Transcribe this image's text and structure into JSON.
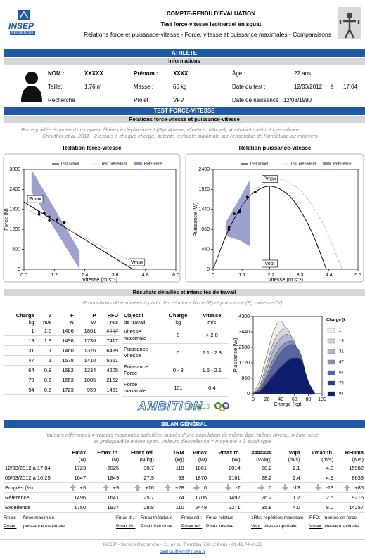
{
  "header": {
    "logo": "INSEP",
    "logo_sub": "RECHERCHE",
    "title": "COMPTE-RENDU D'ÉVALUATION",
    "subtitle": "Test force-vitesse isoinertiel en squat",
    "description": "Relations force et puissance-vitesse - Force, vitesse et puissance maximales - Comparaisons"
  },
  "athlete": {
    "section": "ATHLÈTE",
    "subsection": "Informations",
    "rows": [
      [
        "NOM :",
        "XXXXX",
        "Prénom :",
        "XXXX",
        "Âge :",
        "22 ans"
      ],
      [
        "Taille:",
        "1.76 m",
        "Masse :",
        "66 kg",
        "Date du test :",
        "12/03/2012",
        "à",
        "17:04"
      ],
      [
        "Recherche",
        "Projet",
        "VFV",
        "Date de naissance : 12/08/1990"
      ]
    ]
  },
  "test": {
    "section": "TEST FORCE-VITESSE",
    "subsection": "Relations force-vitesse et puissance-vitesse",
    "note": [
      "Barre guidée équipée d'un capteur filaire de déplacement (GymAware, Kinetics, Mitchell, Australie) - Métrologie validée",
      "Crewther et al. 2011 - 2 essais à chaque charge, détente verticale maximale sur l'ensemble de l'amplitude de mouvem"
    ]
  },
  "chart_data": [
    {
      "type": "line",
      "title": "Relation force-vitesse",
      "x_label": "Vitesse (m.s⁻¹)",
      "y_label": "Force (N)",
      "xlim": [
        0,
        6
      ],
      "ylim": [
        0,
        3000
      ],
      "xticks": [
        {
          "value": 0,
          "label": "0.0"
        },
        1.2,
        2.4,
        3.6,
        4.8,
        {
          "value": 6,
          "label": "6.0"
        }
      ],
      "yticks": [
        0,
        600,
        1200,
        1800,
        2400,
        3000
      ],
      "series": [
        {
          "name": "Test actuel",
          "color": "#000000",
          "x": [
            0,
            4.3
          ],
          "values": [
            2025,
            0
          ]
        },
        {
          "name": "Test précédent",
          "color": "#b0b0b0",
          "dash": true,
          "x": [
            0,
            4.9
          ],
          "values": [
            1849,
            0
          ]
        }
      ],
      "band": {
        "name": "Référence",
        "color": "#8c90c8",
        "x": [
          0.3,
          2.2
        ],
        "upper": [
          3000,
          540
        ],
        "lower": [
          2330,
          0
        ]
      },
      "points": {
        "color": "#000000",
        "x": [
          1.6,
          1.3,
          1,
          1,
          0.8,
          0.6,
          0.6
        ],
        "values": [
          1406,
          1496,
          1460,
          1578,
          1682,
          1653,
          1723
        ]
      },
      "annotations": [
        "Fmax",
        "Vmax"
      ]
    },
    {
      "type": "line",
      "title": "Relation puissance-vitesse",
      "x_label": "Vitesse (m.s⁻¹)",
      "y_label": "Puissance (W)",
      "xlim": [
        0,
        5.5
      ],
      "ylim": [
        0,
        2400
      ],
      "xticks": [
        0,
        1.1,
        2.2,
        3.3,
        4.4,
        5.5
      ],
      "yticks": [
        0,
        480,
        960,
        1440,
        1920,
        2400
      ],
      "series": [
        {
          "name": "Test actuel",
          "color": "#000000",
          "x": [
            0,
            0.5,
            1,
            1.5,
            2.15,
            2.8,
            3.3,
            3.8,
            4.3
          ],
          "values": [
            0,
            822,
            1428,
            1817,
            2000,
            1817,
            1428,
            822,
            0
          ]
        },
        {
          "name": "Test précédent",
          "color": "#b0b0b0",
          "dash": true,
          "x": [
            0,
            0.6,
            1.2,
            1.8,
            2.45,
            3.1,
            3.7,
            4.3,
            4.9
          ],
          "values": [
            0,
            928,
            1598,
            2008,
            2160,
            2008,
            1598,
            928,
            0
          ]
        }
      ],
      "band": {
        "name": "Référence",
        "color": "#8c90c8",
        "x": [
          0.5,
          1.0,
          1.4
        ],
        "upper": [
          1150,
          1700,
          2150
        ],
        "lower": [
          800,
          700,
          550
        ]
      },
      "points": {
        "color": "#000000",
        "x": [
          1.6,
          1.3,
          1,
          1,
          0.8,
          0.6,
          0.6
        ],
        "values": [
          1861,
          1736,
          1376,
          1410,
          1334,
          1005,
          959
        ]
      },
      "annotations": [
        "Pmax",
        "Vopt"
      ]
    },
    {
      "type": "area",
      "x_label": "Charge (kg)",
      "y_label": "Puissance (W)",
      "legend_title": "Charge (k",
      "xlim": [
        0,
        100
      ],
      "ylim": [
        0,
        4300
      ],
      "xticks": [
        0,
        20,
        40,
        60,
        80,
        100
      ],
      "yticks": [
        0,
        860,
        1720,
        2580,
        3440,
        4300
      ],
      "x": [
        0,
        10,
        20,
        30,
        40,
        50,
        60,
        70,
        80,
        90
      ],
      "series": [
        {
          "name": "1",
          "color": "#eeeeee",
          "values": [
            0,
            800,
            2200,
            3500,
            4050,
            3300,
            1800,
            600,
            0,
            0
          ]
        },
        {
          "name": "19",
          "color": "#d4d6de",
          "values": [
            0,
            500,
            1700,
            2900,
            3500,
            3600,
            2600,
            1000,
            100,
            0
          ]
        },
        {
          "name": "31",
          "color": "#b3b8cc",
          "values": [
            0,
            400,
            1400,
            2500,
            3100,
            3300,
            2900,
            1400,
            200,
            0
          ]
        },
        {
          "name": "47",
          "color": "#8690b8",
          "values": [
            0,
            300,
            1100,
            2000,
            2600,
            2900,
            2800,
            1800,
            300,
            0
          ]
        },
        {
          "name": "64",
          "color": "#5866a0",
          "values": [
            0,
            250,
            900,
            1700,
            2300,
            2650,
            2700,
            2100,
            500,
            0
          ]
        },
        {
          "name": "79",
          "color": "#2d3d86",
          "values": [
            0,
            150,
            600,
            1100,
            1500,
            1850,
            2000,
            1800,
            600,
            0
          ]
        },
        {
          "name": "94",
          "color": "#0c1e6c",
          "values": [
            0,
            150,
            550,
            1000,
            1450,
            1800,
            1950,
            1850,
            700,
            0
          ]
        }
      ]
    }
  ],
  "results": {
    "subsection": "Résultats détaillés et intensités de travail",
    "note": "Propositions déterminées à partir des relations force (F) et puissance (P) - vitesse (V)",
    "detail": {
      "header": [
        [
          "Charge",
          "V",
          "F",
          "P",
          "RFD"
        ],
        [
          "kg",
          "m/s",
          "N",
          "W",
          "N/s"
        ]
      ],
      "rows": [
        [
          "1",
          "1.6",
          "1406",
          "1861",
          "####"
        ],
        [
          "19",
          "1.3",
          "1496",
          "1736",
          "7417"
        ],
        [
          "31",
          "1",
          "1460",
          "1376",
          "6439"
        ],
        [
          "47",
          "1",
          "1578",
          "1410",
          "5651"
        ],
        [
          "64",
          "0.8",
          "1682",
          "1334",
          "4205"
        ],
        [
          "79",
          "0.6",
          "1653",
          "1005",
          "2162"
        ],
        [
          "94",
          "0.6",
          "1723",
          "959",
          "1461"
        ]
      ]
    },
    "objectives": {
      "header": [
        [
          "Objectif",
          "Charge",
          "Vitesse"
        ],
        [
          "de travail",
          "kg",
          "m/s"
        ]
      ],
      "rows": [
        [
          "Vitesse maximale",
          "0",
          "> 2.8"
        ],
        [
          "Puissance Vitesse",
          "0",
          "2.1 - 2.8"
        ],
        [
          "Puissance Force",
          "0 - 3",
          "1.5 - 2.1"
        ],
        [
          "Force maximale",
          "101",
          "0.4"
        ]
      ]
    },
    "logos": [
      "AMBITION",
      "Rio2016"
    ]
  },
  "summary": {
    "section": "BILAN GÉNÉRAL",
    "note": [
      "Valeurs références = valeurs moyennes calculées auprès d'une population de même âge, même niveau, même sexe",
      "et pratiquant le même sport. Valeurs d'excellence = moyenne + 1 écart-type"
    ],
    "header": [
      [
        "Fmax",
        "Fmax th.",
        "Fmax rel.",
        "1RM",
        "Pmax",
        "Pmax th.",
        "#######",
        "Vopt",
        "Vmax th.",
        "RFDma"
      ],
      [
        "(N)",
        "(N)",
        "(N/kg)",
        "(kg)",
        "(W)",
        "(W)",
        "(W/kg)",
        "(m/s)",
        "(m/s)",
        "(N/s)"
      ]
    ],
    "rows": [
      [
        "12/03/2012 à 17:04",
        "1723",
        "2025",
        "30.7",
        "119",
        "1861",
        "2014",
        "28.2",
        "2.1",
        "4.3",
        "15982"
      ],
      [
        "06/03/2012 à 16:25",
        "1647",
        "1849",
        "27.9",
        "93",
        "1870",
        "2161",
        "28.2",
        "2.4",
        "4.9",
        "8639"
      ],
      [
        "Progrès (%)",
        "+5",
        "+9",
        "+10",
        "+28",
        "0",
        "-7",
        "0",
        "-13",
        "-13",
        "+85"
      ],
      [
        "Référence",
        "1496",
        "1641",
        "25.7",
        "74",
        "1705",
        "1492",
        "26.2",
        "1.2",
        "2.5",
        "9216"
      ],
      [
        "Excellence",
        "1750",
        "1937",
        "29.8",
        "110",
        "2448",
        "2271",
        "35.8",
        "4.0",
        "8.0",
        "14257"
      ]
    ]
  },
  "definitions": [
    [
      [
        "Fmax:",
        "force maximale"
      ],
      [
        "Fmax th.:",
        "Fmax théorique"
      ],
      [
        "Fmax rel.:",
        "Fmax relative"
      ],
      [
        "1RM:",
        "répétition maximale"
      ],
      [
        "RFD:",
        "montée en force"
      ]
    ],
    [
      [
        "Pmax:",
        "puissance maximale"
      ],
      [
        "Pmax th.:",
        "Pmax théorique"
      ],
      [
        "Pmax rel.:",
        "Pmax relative"
      ],
      [
        "Vopt:",
        "vitesse optimale"
      ],
      [
        "Vmax:",
        "vitesse maximale"
      ]
    ]
  ],
  "footer": {
    "address": "INSEP - Service Recherche - 11, av du Tremblay 75012 Paris - 01.41.74.43.36",
    "email": "gael.guilhem@insep.fr"
  }
}
